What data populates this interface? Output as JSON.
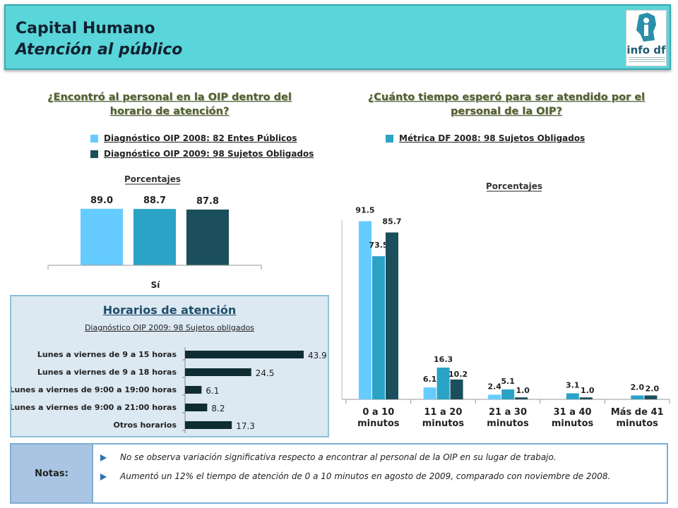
{
  "header": {
    "title": "Capital Humano",
    "subtitle": "Atención al público",
    "logo_text": "info df"
  },
  "left_chart": {
    "question": "¿Encontró al personal en la OIP dentro del horario de atención?",
    "legend": [
      {
        "label": "Diagnóstico OIP 2008: 82 Entes Públicos",
        "color": "#66ccff"
      },
      {
        "label": "Diagnóstico OIP 2009: 98 Sujetos Obligados",
        "color": "#1b4f5c"
      }
    ]
  },
  "right_chart": {
    "question": "¿Cuánto tiempo esperó para ser atendido por el personal de la OIP?",
    "legend": [
      {
        "label": "Métrica DF 2008: 98 Sujetos Obligados",
        "color": "#2aa3c6"
      }
    ]
  },
  "horarios": {
    "title": "Horarios de atención",
    "subtitle": "Diagnóstico OIP 2009: 98 Sujetos obligados"
  },
  "notes": {
    "label": "Notas:",
    "items": [
      "No se observa variación significativa respecto a encontrar al personal de la OIP en su lugar de trabajo.",
      "Aumentó un 12% el tiempo de atención de 0 a 10 minutos en agosto de 2009, comparado con noviembre de 2008."
    ]
  },
  "chart_data": [
    {
      "type": "bar",
      "title": "Porcentajes",
      "categories": [
        "Sí"
      ],
      "series": [
        {
          "name": "Diagnóstico OIP 2008: 82 Entes Públicos",
          "values": [
            89.0
          ],
          "color": "#66ccff"
        },
        {
          "values": [
            88.7
          ],
          "color": "#2aa3c6"
        },
        {
          "name": "Diagnóstico OIP 2009: 98 Sujetos Obligados",
          "values": [
            87.8
          ],
          "color": "#1b4f5c"
        }
      ],
      "value_labels": [
        "89.0",
        "88.7",
        "87.8"
      ],
      "ylim": [
        0,
        100
      ],
      "grid": false
    },
    {
      "type": "bar",
      "title": "Porcentajes",
      "categories": [
        "0 a 10 minutos",
        "11 a 20 minutos",
        "21 a 30 minutos",
        "31 a 40 minutos",
        "Más de 41 minutos"
      ],
      "series": [
        {
          "values": [
            91.5,
            6.1,
            2.4,
            null,
            null
          ],
          "labels": [
            "91.5",
            "6.1",
            "2.4",
            "",
            ""
          ],
          "color": "#66ccff"
        },
        {
          "name": "Métrica DF 2008: 98 Sujetos Obligados",
          "values": [
            73.5,
            16.3,
            5.1,
            3.1,
            2.0
          ],
          "labels": [
            "73.5",
            "16.3",
            "5.1",
            "3.1",
            "2.0"
          ],
          "color": "#2aa3c6"
        },
        {
          "values": [
            85.7,
            10.2,
            1.0,
            1.0,
            2.0
          ],
          "labels": [
            "85.7",
            "10.2",
            "1.0",
            "1.0",
            "2.0"
          ],
          "color": "#1b4f5c"
        }
      ],
      "ylim": [
        0,
        100
      ],
      "grid": false
    },
    {
      "type": "bar",
      "orientation": "horizontal",
      "categories": [
        "Lunes a viernes de 9 a 15 horas",
        "Lunes a viernes de 9 a 18 horas",
        "Lunes a viernes de 9:00 a 19:00 horas",
        "Lunes a viernes de 9:00 a 21:00 horas",
        "Otros horarios"
      ],
      "values": [
        43.9,
        24.5,
        6.1,
        8.2,
        17.3
      ],
      "labels": [
        "43.9",
        "24.5",
        "6.1",
        "8.2",
        "17.3"
      ],
      "color": "#0f2c33",
      "xlim": [
        0,
        43.9
      ]
    }
  ]
}
